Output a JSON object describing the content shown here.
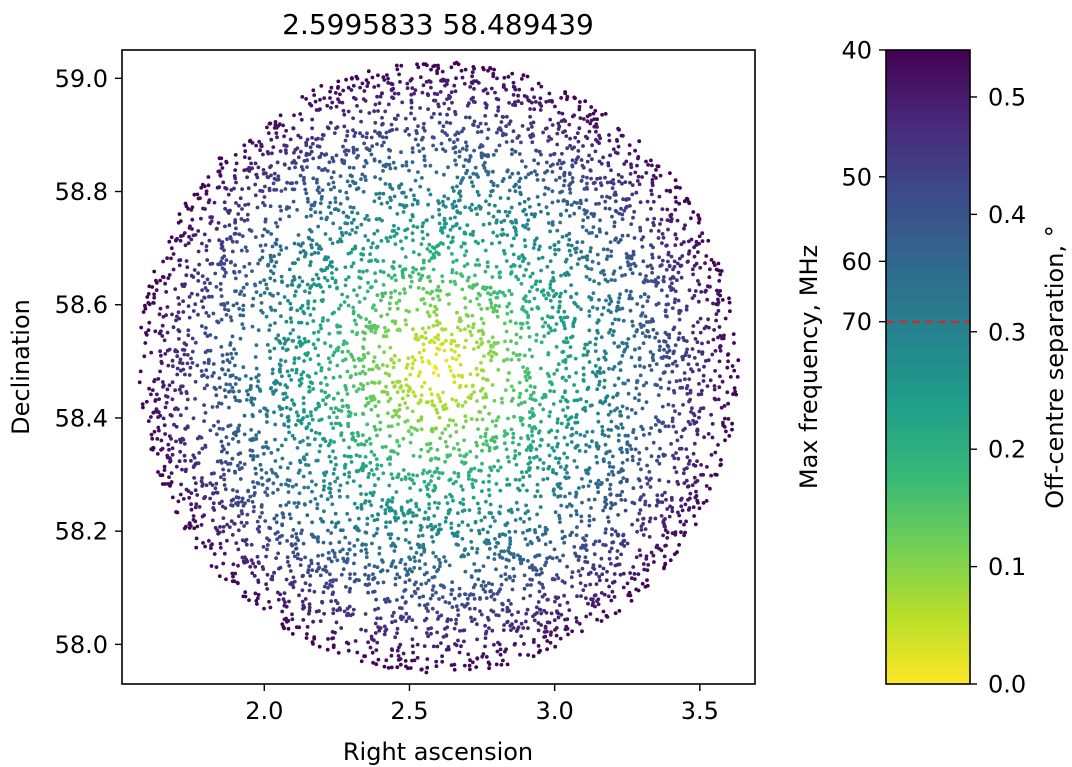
{
  "chart_data": [
    {
      "type": "scatter",
      "title": "2.5995833 58.489439",
      "xlabel": "Right ascension",
      "ylabel": "Declination",
      "xlim": [
        1.51,
        3.69
      ],
      "ylim": [
        57.93,
        59.05
      ],
      "xticks": [
        2.0,
        2.5,
        3.0,
        3.5
      ],
      "yticks": [
        58.0,
        58.2,
        58.4,
        58.6,
        58.8,
        59.0
      ],
      "xtick_labels": [
        "2.0",
        "2.5",
        "3.0",
        "3.5"
      ],
      "ytick_labels": [
        "58.0",
        "58.2",
        "58.4",
        "58.6",
        "58.8",
        "59.0"
      ],
      "grid": false,
      "center": {
        "ra": 2.5995833,
        "dec": 58.489439
      },
      "points_description_count": 6000,
      "field_radius_deg": 0.54,
      "colormap": "viridis_r",
      "color_encoding": "off-centre separation (degrees)"
    },
    {
      "type": "colorbar",
      "right_label": "Off-centre separation, °",
      "right_range": [
        0.0,
        0.54
      ],
      "right_ticks": [
        0.0,
        0.1,
        0.2,
        0.3,
        0.4,
        0.5
      ],
      "right_tick_labels": [
        "0.0",
        "0.1",
        "0.2",
        "0.3",
        "0.4",
        "0.5"
      ],
      "left_label": "Max frequency, MHz",
      "left_ticks": [
        40,
        50,
        60,
        70
      ],
      "left_tick_labels": [
        "40",
        "50",
        "60",
        "70"
      ],
      "left_tick_separations": [
        0.54,
        0.432,
        0.36,
        0.3086
      ],
      "threshold_separation": 0.3086,
      "threshold_color": "#d62728",
      "colormap_stops": [
        "#fde725",
        "#b5de2b",
        "#6ece58",
        "#35b779",
        "#1f9e89",
        "#26828e",
        "#31688e",
        "#3e4989",
        "#482878",
        "#440154"
      ]
    }
  ]
}
